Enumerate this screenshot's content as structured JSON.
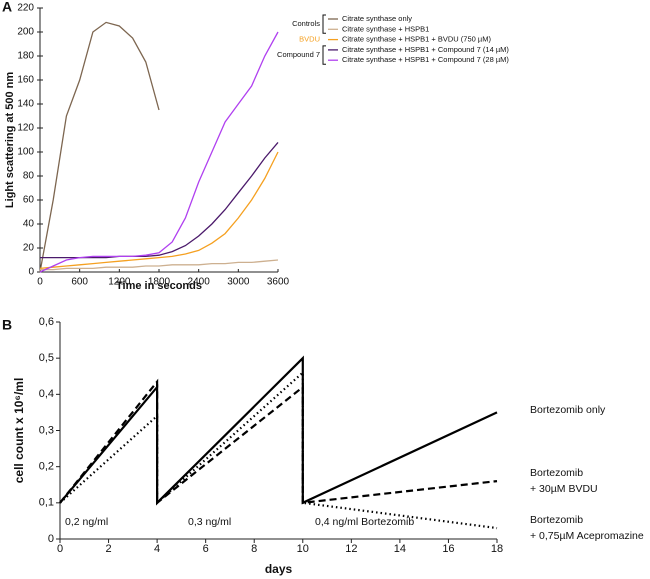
{
  "chart_data": [
    {
      "type": "line",
      "panel": "A",
      "xlabel": "Time in seconds",
      "ylabel": "Light scattering at 500 nm",
      "x": [
        0,
        200,
        400,
        600,
        800,
        1000,
        1200,
        1400,
        1600,
        1800,
        2000,
        2200,
        2400,
        2600,
        2800,
        3000,
        3200,
        3400,
        3600
      ],
      "xlim": [
        0,
        3600
      ],
      "xticks": [
        0,
        600,
        1200,
        1800,
        2400,
        3000,
        3600
      ],
      "ylim": [
        0,
        220
      ],
      "yticks": [
        0,
        20,
        40,
        60,
        80,
        100,
        120,
        140,
        160,
        180,
        200,
        220
      ],
      "series": [
        {
          "name": "Citrate synthase only",
          "group": "Controls",
          "color": "#7d6650",
          "values": [
            0,
            60,
            130,
            160,
            200,
            208,
            205,
            195,
            175,
            135,
            null,
            null,
            null,
            null,
            null,
            null,
            null,
            null,
            null
          ]
        },
        {
          "name": "Citrate synthase + HSPB1",
          "group": "Controls",
          "color": "#cdb090",
          "values": [
            2,
            2,
            3,
            3,
            3,
            4,
            4,
            4,
            5,
            5,
            6,
            6,
            6,
            7,
            7,
            8,
            8,
            9,
            10
          ]
        },
        {
          "name": "Citrate synthase + HSPB1 + BVDU (750 µM)",
          "group": "BVDU",
          "color": "#f5a020",
          "values": [
            3,
            4,
            5,
            6,
            7,
            8,
            9,
            10,
            11,
            12,
            13,
            15,
            18,
            24,
            32,
            45,
            60,
            78,
            100
          ]
        },
        {
          "name": "Citrate synthase + HSPB1 + Compound 7 (14 µM)",
          "group": "Compound 7",
          "color": "#4b1a6b",
          "values": [
            12,
            12,
            12,
            12,
            12,
            12,
            13,
            13,
            13,
            14,
            17,
            22,
            30,
            40,
            52,
            66,
            80,
            95,
            108
          ]
        },
        {
          "name": "Citrate synthase + HSPB1 + Compound 7 (28 µM)",
          "group": "Compound 7",
          "color": "#b040f0",
          "values": [
            0,
            5,
            10,
            12,
            13,
            13,
            13,
            13,
            14,
            16,
            25,
            45,
            75,
            100,
            125,
            140,
            155,
            180,
            200
          ]
        }
      ]
    },
    {
      "type": "line",
      "panel": "B",
      "xlabel": "days",
      "ylabel": "cell count x 10⁶/ml",
      "x": [
        0,
        4,
        4,
        10,
        10,
        18
      ],
      "xlim": [
        0,
        18
      ],
      "xticks": [
        0,
        2,
        4,
        6,
        8,
        10,
        12,
        14,
        16,
        18
      ],
      "ylim": [
        0,
        0.6
      ],
      "yticks": [
        0,
        {
          "value": 0.1,
          "label": "0,1"
        },
        {
          "value": 0.2,
          "label": "0,2"
        },
        {
          "value": 0.3,
          "label": "0,3"
        },
        {
          "value": 0.4,
          "label": "0,4"
        },
        {
          "value": 0.5,
          "label": "0,5"
        },
        {
          "value": 0.6,
          "label": "0,6"
        }
      ],
      "annotations": [
        "0,2 ng/ml",
        "0,3 ng/ml",
        "0,4 ng/ml Bortezomib"
      ],
      "series": [
        {
          "name": "Bortezomib only",
          "color": "#000000",
          "dash": "solid",
          "values": [
            0.1,
            0.42,
            0.1,
            0.5,
            0.1,
            0.35
          ]
        },
        {
          "name": "Bortezomib + 30µM BVDU",
          "color": "#000000",
          "dash": "dashed",
          "values": [
            0.1,
            0.435,
            0.1,
            0.42,
            0.1,
            0.16
          ]
        },
        {
          "name": "Bortezomib + 0,75µM Acepromazine",
          "color": "#000000",
          "dash": "dotted",
          "values": [
            0.1,
            0.34,
            0.1,
            0.46,
            0.1,
            0.03
          ]
        }
      ]
    }
  ]
}
